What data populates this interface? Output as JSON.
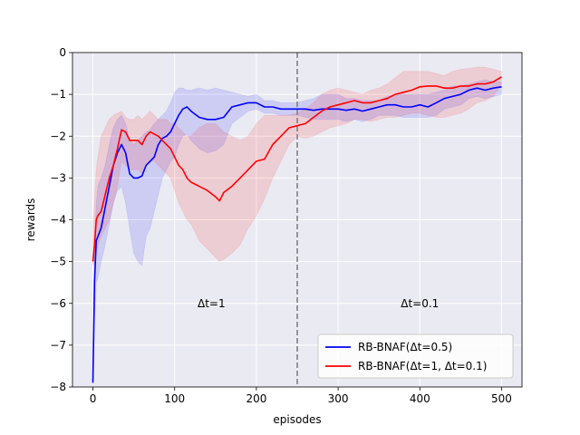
{
  "chart_data": {
    "type": "line",
    "title": "",
    "xlabel": "episodes",
    "ylabel": "rewards",
    "xlim": [
      -25,
      525
    ],
    "ylim": [
      -8,
      0
    ],
    "xticks": [
      0,
      100,
      200,
      300,
      400,
      500
    ],
    "yticks": [
      -8,
      -7,
      -6,
      -5,
      -4,
      -3,
      -2,
      -1,
      0
    ],
    "grid": true,
    "legend_position": "bottom-right",
    "background": "#eaeaf2",
    "vline": {
      "x": 250,
      "color": "#808080",
      "style": "dashed"
    },
    "annotations": [
      {
        "text": "Δt=1",
        "x": 145,
        "y": -6
      },
      {
        "text": "Δt=0.1",
        "x": 400,
        "y": -6
      }
    ],
    "series": [
      {
        "name": "RB-BNAF(Δt=0.5)",
        "color": "#0000ff",
        "x": [
          0,
          2,
          4,
          6,
          10,
          15,
          20,
          25,
          30,
          35,
          40,
          45,
          50,
          55,
          60,
          65,
          70,
          75,
          80,
          85,
          90,
          95,
          100,
          105,
          110,
          115,
          120,
          130,
          140,
          150,
          160,
          170,
          180,
          190,
          200,
          210,
          220,
          230,
          240,
          250,
          260,
          270,
          280,
          290,
          300,
          310,
          320,
          330,
          340,
          350,
          360,
          370,
          380,
          390,
          400,
          410,
          420,
          430,
          440,
          450,
          460,
          470,
          480,
          490,
          500
        ],
        "y": [
          -7.9,
          -5.5,
          -4.5,
          -4.4,
          -4.2,
          -3.7,
          -3.2,
          -2.7,
          -2.4,
          -2.2,
          -2.4,
          -2.9,
          -3.0,
          -3.0,
          -2.95,
          -2.7,
          -2.6,
          -2.5,
          -2.2,
          -2.05,
          -2.0,
          -1.9,
          -1.7,
          -1.5,
          -1.35,
          -1.3,
          -1.4,
          -1.55,
          -1.6,
          -1.6,
          -1.55,
          -1.3,
          -1.25,
          -1.2,
          -1.2,
          -1.3,
          -1.3,
          -1.35,
          -1.35,
          -1.35,
          -1.35,
          -1.38,
          -1.35,
          -1.35,
          -1.35,
          -1.38,
          -1.35,
          -1.4,
          -1.35,
          -1.3,
          -1.25,
          -1.25,
          -1.3,
          -1.3,
          -1.25,
          -1.3,
          -1.2,
          -1.1,
          -1.05,
          -1.0,
          -0.9,
          -0.85,
          -0.9,
          -0.85,
          -0.82
        ],
        "upper": [
          -7.5,
          -4.5,
          -3.6,
          -3.2,
          -3.0,
          -2.7,
          -2.2,
          -1.8,
          -1.6,
          -1.5,
          -1.7,
          -2.1,
          -2.2,
          -2.1,
          -2.0,
          -1.9,
          -1.85,
          -1.7,
          -1.6,
          -1.5,
          -1.4,
          -1.2,
          -0.95,
          -0.85,
          -0.85,
          -0.9,
          -0.9,
          -0.85,
          -0.9,
          -0.85,
          -0.9,
          -0.95,
          -1.0,
          -1.05,
          -1.0,
          -1.15,
          -1.15,
          -1.2,
          -1.2,
          -1.2,
          -1.15,
          -1.1,
          -1.0,
          -1.0,
          -1.0,
          -1.1,
          -1.1,
          -1.15,
          -1.15,
          -1.15,
          -1.05,
          -1.0,
          -1.0,
          -1.0,
          -1.0,
          -1.0,
          -0.95,
          -0.9,
          -0.8,
          -0.8,
          -0.75,
          -0.7,
          -0.65,
          -0.7,
          -0.7
        ],
        "lower": [
          -8.0,
          -6.5,
          -5.5,
          -5.4,
          -5.0,
          -4.6,
          -4.1,
          -3.6,
          -3.3,
          -3.2,
          -3.6,
          -4.2,
          -4.8,
          -5.0,
          -5.1,
          -4.4,
          -4.2,
          -3.8,
          -3.4,
          -3.0,
          -2.8,
          -2.6,
          -2.5,
          -2.2,
          -2.0,
          -1.95,
          -2.1,
          -2.3,
          -2.4,
          -2.35,
          -2.2,
          -1.7,
          -1.55,
          -1.4,
          -1.35,
          -1.45,
          -1.45,
          -1.5,
          -1.5,
          -1.5,
          -1.55,
          -1.6,
          -1.6,
          -1.6,
          -1.6,
          -1.65,
          -1.6,
          -1.65,
          -1.6,
          -1.5,
          -1.5,
          -1.5,
          -1.55,
          -1.55,
          -1.55,
          -1.55,
          -1.5,
          -1.35,
          -1.3,
          -1.25,
          -1.1,
          -1.05,
          -1.1,
          -1.05,
          -1.0
        ]
      },
      {
        "name": "RB-BNAF(Δt=1, Δt=0.1)",
        "color": "#ff0000",
        "x": [
          0,
          2,
          4,
          6,
          10,
          15,
          20,
          25,
          30,
          35,
          40,
          45,
          50,
          55,
          60,
          65,
          70,
          75,
          80,
          85,
          90,
          95,
          100,
          105,
          110,
          115,
          120,
          130,
          140,
          150,
          155,
          160,
          170,
          180,
          190,
          200,
          210,
          220,
          230,
          240,
          250,
          260,
          270,
          280,
          290,
          300,
          310,
          320,
          330,
          340,
          350,
          360,
          370,
          380,
          390,
          400,
          410,
          420,
          430,
          440,
          450,
          460,
          470,
          480,
          490,
          500
        ],
        "y": [
          -5.0,
          -4.6,
          -4.0,
          -3.9,
          -3.8,
          -3.4,
          -3.0,
          -2.7,
          -2.3,
          -1.85,
          -1.9,
          -2.1,
          -2.1,
          -2.1,
          -2.2,
          -2.0,
          -1.9,
          -1.95,
          -2.0,
          -2.1,
          -2.2,
          -2.3,
          -2.5,
          -2.7,
          -2.8,
          -3.0,
          -3.1,
          -3.2,
          -3.3,
          -3.45,
          -3.55,
          -3.35,
          -3.2,
          -3.0,
          -2.8,
          -2.6,
          -2.55,
          -2.2,
          -2.0,
          -1.8,
          -1.75,
          -1.7,
          -1.55,
          -1.4,
          -1.3,
          -1.25,
          -1.2,
          -1.15,
          -1.2,
          -1.2,
          -1.15,
          -1.1,
          -1.0,
          -0.95,
          -0.9,
          -0.82,
          -0.8,
          -0.8,
          -0.85,
          -0.85,
          -0.8,
          -0.8,
          -0.75,
          -0.75,
          -0.7,
          -0.58
        ],
        "upper": [
          -4.2,
          -3.5,
          -2.8,
          -2.5,
          -2.0,
          -1.8,
          -1.6,
          -1.5,
          -1.45,
          -1.4,
          -1.55,
          -1.6,
          -1.6,
          -1.5,
          -1.6,
          -1.5,
          -1.4,
          -1.5,
          -1.6,
          -1.6,
          -1.6,
          -1.7,
          -1.7,
          -1.8,
          -1.9,
          -2.0,
          -2.0,
          -1.8,
          -1.7,
          -1.7,
          -1.8,
          -1.9,
          -2.0,
          -2.1,
          -2.0,
          -1.7,
          -1.5,
          -1.5,
          -1.5,
          -1.5,
          -1.45,
          -1.35,
          -1.2,
          -1.0,
          -0.9,
          -0.85,
          -0.9,
          -0.95,
          -1.0,
          -0.9,
          -0.85,
          -0.75,
          -0.6,
          -0.45,
          -0.45,
          -0.45,
          -0.45,
          -0.5,
          -0.55,
          -0.45,
          -0.4,
          -0.38,
          -0.35,
          -0.35,
          -0.4,
          -0.45
        ],
        "lower": [
          -5.1,
          -5.0,
          -4.8,
          -4.6,
          -4.4,
          -4.2,
          -4.0,
          -3.6,
          -3.2,
          -2.6,
          -2.7,
          -2.8,
          -2.8,
          -2.8,
          -2.9,
          -2.7,
          -2.6,
          -2.6,
          -2.7,
          -2.8,
          -2.9,
          -3.0,
          -3.3,
          -3.6,
          -3.8,
          -4.0,
          -4.1,
          -4.5,
          -4.7,
          -4.9,
          -5.0,
          -4.95,
          -4.8,
          -4.6,
          -4.2,
          -3.9,
          -3.5,
          -3.0,
          -2.6,
          -2.2,
          -2.0,
          -2.05,
          -2.0,
          -1.9,
          -1.8,
          -1.75,
          -1.7,
          -1.6,
          -1.6,
          -1.65,
          -1.6,
          -1.55,
          -1.55,
          -1.5,
          -1.45,
          -1.45,
          -1.5,
          -1.55,
          -1.55,
          -1.5,
          -1.45,
          -1.35,
          -1.2,
          -1.15,
          -1.05,
          -0.75
        ]
      }
    ]
  }
}
